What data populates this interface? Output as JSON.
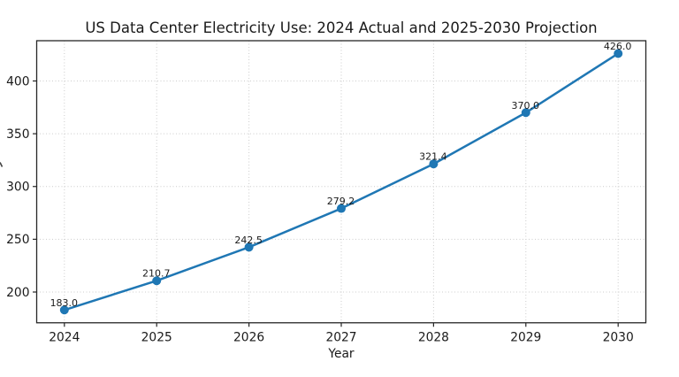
{
  "chart_data": {
    "type": "line",
    "title": "US Data Center Electricity Use: 2024 Actual and 2025-2030 Projection",
    "xlabel": "Year",
    "ylabel": "",
    "x": [
      2024,
      2025,
      2026,
      2027,
      2028,
      2029,
      2030
    ],
    "values": [
      183.0,
      210.7,
      242.5,
      279.2,
      321.4,
      370.0,
      426.0
    ],
    "point_labels": [
      "183.0",
      "210.7",
      "242.5",
      "279.2",
      "321.4",
      "370.0",
      "426.0"
    ],
    "x_ticks": [
      2024,
      2025,
      2026,
      2027,
      2028,
      2029,
      2030
    ],
    "x_tick_labels": [
      "2024",
      "2025",
      "2026",
      "2027",
      "2028",
      "2029",
      "2030"
    ],
    "y_ticks": [
      200,
      250,
      300,
      350,
      400
    ],
    "y_tick_labels": [
      "200",
      "250",
      "300",
      "350",
      "400"
    ],
    "xlim": [
      2023.7,
      2030.3
    ],
    "ylim": [
      170.85,
      438.15
    ],
    "grid": true,
    "grid_style": "dotted",
    "legend": "none",
    "marker": "circle",
    "colors": {
      "line": "#1f77b4",
      "marker": "#1f77b4",
      "grid": "#cccccc",
      "axis": "#262626",
      "text": "#1a1a1a"
    }
  }
}
